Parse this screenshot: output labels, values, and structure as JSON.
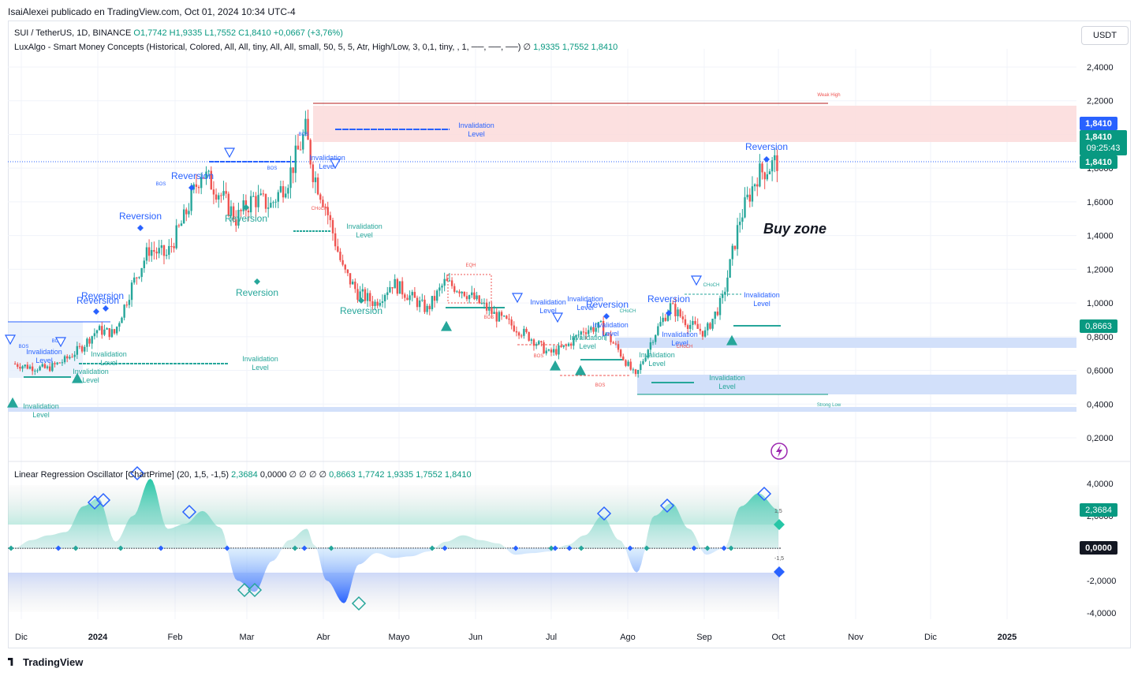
{
  "header": {
    "published": "IsaiAlexei publicado en TradingView.com, Oct 01, 2024 10:34 UTC-4",
    "symbol_line": "SUI / TetherUS, 1D, BINANCE",
    "ohlc": "O1,7742  H1,9335  L1,7552  C1,8410",
    "change": "+0,0667 (+3,76%)",
    "indicator_line": "LuxAlgo - Smart Money Concepts (Historical, Colored, All, All, tiny, All, All, small, 50, 5, 5, Atr, High/Low, 3, 0,1, tiny, , 1, ──, ──, ──)  ∅",
    "indicator_values": "1,9335   1,7552   1,8410",
    "currency_button": "USDT"
  },
  "oscillator_legend": {
    "name": "Linear Regression Oscillator [ChartPrime] (20, 1,5, -1,5)",
    "value": "2,3684",
    "values_rest": "0,0000  ∅  ∅  ∅  ∅",
    "values_colored": "0,8663   1,7742   1,9335   1,7552   1,8410"
  },
  "footer": {
    "brand": "TradingView"
  },
  "price_badges": {
    "last": "1,8410",
    "last2": "1,8410",
    "countdown": "09:25:43",
    "current": "1,8410",
    "level": "0,8663",
    "osc_value": "2,3684",
    "osc_zero": "0,0000"
  },
  "annotations": {
    "buy_zone": "Buy zone",
    "reversion": "Reversion",
    "invalidation": "Invalidation",
    "level": "Level",
    "bos": "BOS",
    "choch": "CHoCH",
    "eqh": "EQH",
    "weak_high": "Weak High",
    "strong_low": "Strong Low",
    "osc_upper": "1,5",
    "osc_lower": "-1,5"
  },
  "colors": {
    "up": "#26a69a",
    "down": "#ef5350",
    "supply_zone": "#fcdada",
    "demand_zone": "#d2e0fa",
    "reversion_up": "#26a69a",
    "reversion_down": "#2962ff",
    "accent_blue": "#2962ff"
  },
  "chart_data": [
    {
      "type": "line",
      "title": "SUI / TetherUS, 1D, BINANCE",
      "xlabel": "",
      "ylabel": "",
      "x_ticks": [
        "Dic",
        "2024",
        "Feb",
        "Mar",
        "Abr",
        "Mayo",
        "Jun",
        "Jul",
        "Ago",
        "Sep",
        "Oct",
        "Nov",
        "Dic",
        "2025"
      ],
      "y_ticks": [
        "0,2000",
        "0,4000",
        "0,6000",
        "0,8000",
        "1,0000",
        "1,2000",
        "1,4000",
        "1,6000",
        "1,8000",
        "2,0000",
        "2,2000",
        "2,4000"
      ],
      "ylim": [
        0.1,
        2.48
      ],
      "series": [
        {
          "name": "SUI / TetherUS",
          "dates": [
            "2023-11-28",
            "2023-12-05",
            "2023-12-12",
            "2023-12-19",
            "2023-12-26",
            "2024-01-01",
            "2024-01-08",
            "2024-01-15",
            "2024-01-22",
            "2024-01-29",
            "2024-02-05",
            "2024-02-12",
            "2024-02-19",
            "2024-02-26",
            "2024-03-04",
            "2024-03-11",
            "2024-03-18",
            "2024-03-25",
            "2024-03-28",
            "2024-04-02",
            "2024-04-09",
            "2024-04-15",
            "2024-04-22",
            "2024-04-29",
            "2024-05-06",
            "2024-05-13",
            "2024-05-20",
            "2024-05-27",
            "2024-06-03",
            "2024-06-10",
            "2024-06-17",
            "2024-06-24",
            "2024-07-01",
            "2024-07-08",
            "2024-07-15",
            "2024-07-22",
            "2024-07-29",
            "2024-08-05",
            "2024-08-12",
            "2024-08-19",
            "2024-08-26",
            "2024-09-02",
            "2024-09-09",
            "2024-09-16",
            "2024-09-23",
            "2024-10-01"
          ],
          "values": [
            0.64,
            0.62,
            0.61,
            0.66,
            0.74,
            0.84,
            0.82,
            1.1,
            1.32,
            1.28,
            1.5,
            1.78,
            1.66,
            1.5,
            1.62,
            1.58,
            1.74,
            2.02,
            1.78,
            1.58,
            1.2,
            1.06,
            1.0,
            1.12,
            1.04,
            0.96,
            1.12,
            1.08,
            1.0,
            0.92,
            0.86,
            0.79,
            0.7,
            0.74,
            0.84,
            0.86,
            0.72,
            0.56,
            0.8,
            0.98,
            0.88,
            0.82,
            1.02,
            1.5,
            1.76,
            1.841
          ]
        }
      ]
    },
    {
      "type": "area",
      "title": "Linear Regression Oscillator [ChartPrime] (20, 1,5, -1,5)",
      "xlabel": "",
      "ylabel": "",
      "y_ticks": [
        "-4,0000",
        "-2,0000",
        "0,0000",
        "2,0000",
        "4,0000"
      ],
      "ylim": [
        -4.5,
        4.5
      ],
      "series": [
        {
          "name": "Linear Regression Oscillator",
          "dates": [
            "2023-11-28",
            "2023-12-05",
            "2023-12-12",
            "2023-12-19",
            "2023-12-26",
            "2024-01-01",
            "2024-01-08",
            "2024-01-15",
            "2024-01-22",
            "2024-01-29",
            "2024-02-05",
            "2024-02-12",
            "2024-02-19",
            "2024-02-26",
            "2024-03-04",
            "2024-03-11",
            "2024-03-18",
            "2024-03-25",
            "2024-03-28",
            "2024-04-02",
            "2024-04-09",
            "2024-04-15",
            "2024-04-22",
            "2024-04-29",
            "2024-05-06",
            "2024-05-13",
            "2024-05-20",
            "2024-05-27",
            "2024-06-03",
            "2024-06-10",
            "2024-06-17",
            "2024-06-24",
            "2024-07-01",
            "2024-07-08",
            "2024-07-15",
            "2024-07-22",
            "2024-07-29",
            "2024-08-05",
            "2024-08-12",
            "2024-08-19",
            "2024-08-26",
            "2024-09-02",
            "2024-09-09",
            "2024-09-16",
            "2024-09-23",
            "2024-10-01"
          ],
          "values": [
            0.0,
            0.5,
            0.8,
            1.0,
            2.6,
            3.1,
            0.4,
            2.0,
            4.3,
            1.2,
            1.5,
            2.3,
            1.3,
            -2.0,
            -2.7,
            -0.8,
            0.5,
            1.2,
            0.2,
            -2.0,
            -3.4,
            -1.0,
            -0.3,
            -0.6,
            -0.5,
            -0.2,
            0.4,
            0.8,
            0.5,
            0.3,
            -0.4,
            -0.3,
            -0.2,
            0.2,
            0.8,
            2.0,
            0.5,
            -1.5,
            2.0,
            2.8,
            1.2,
            -0.4,
            0.0,
            2.6,
            3.4,
            2.37
          ]
        }
      ]
    }
  ]
}
